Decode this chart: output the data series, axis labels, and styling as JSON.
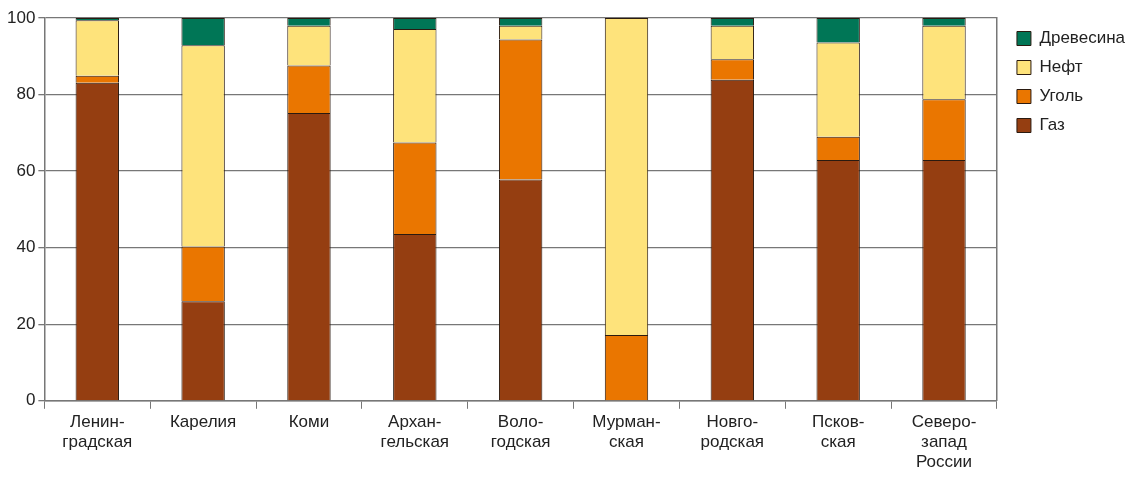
{
  "chart_data": {
    "type": "bar",
    "stacked": true,
    "categories": [
      "Ленин-\nградская",
      "Карелия",
      "Коми",
      "Архан-\nгельская",
      "Воло-\nгодская",
      "Мурман-\nская",
      "Новго-\nродская",
      "Псков-\nская",
      "Северо-\nзапад\nРоссии"
    ],
    "series": [
      {
        "name": "Газ",
        "color": "#953e11",
        "values": [
          83.1,
          26.0,
          75.2,
          43.6,
          57.8,
          0,
          83.9,
          62.9,
          62.9
        ]
      },
      {
        "name": "Уголь",
        "color": "#ea7600",
        "values": [
          1.8,
          14.3,
          12.4,
          23.9,
          36.6,
          17.2,
          5.3,
          6.1,
          15.9
        ]
      },
      {
        "name": "Нефт",
        "color": "#fee37b",
        "values": [
          14.5,
          52.6,
          10.4,
          29.6,
          3.6,
          82.8,
          8.8,
          24.6,
          19.2
        ]
      },
      {
        "name": "Древесина",
        "color": "#007656",
        "values": [
          0.6,
          7.1,
          2.0,
          2.9,
          2.0,
          0,
          2.0,
          6.4,
          2.0
        ]
      }
    ],
    "ylim": [
      0,
      100
    ],
    "yticks": [
      0,
      20,
      40,
      60,
      80,
      100
    ],
    "grid": "y",
    "legend": "top right"
  }
}
